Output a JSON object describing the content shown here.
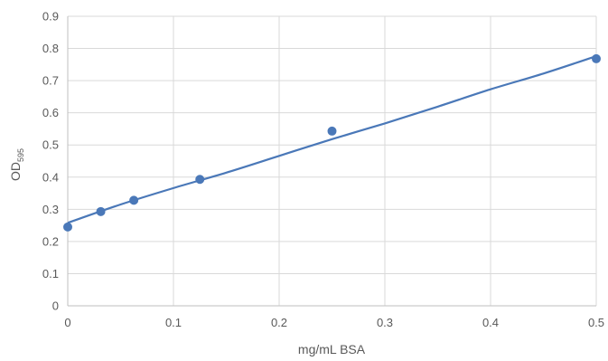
{
  "chart_data": {
    "type": "scatter",
    "title": "",
    "xlabel": "mg/mL BSA",
    "ylabel_main": "OD",
    "ylabel_sub": "595",
    "xlim": [
      0,
      0.5
    ],
    "ylim": [
      0,
      0.9
    ],
    "x_ticks": [
      "0",
      "0.1",
      "0.2",
      "0.3",
      "0.4",
      "0.5"
    ],
    "y_ticks": [
      "0",
      "0.1",
      "0.2",
      "0.3",
      "0.4",
      "0.5",
      "0.6",
      "0.7",
      "0.8",
      "0.9"
    ],
    "grid": true,
    "legend": "none",
    "series": [
      {
        "x": [
          0,
          0.03125,
          0.0625,
          0.125,
          0.25,
          0.5
        ],
        "y": [
          0.245,
          0.293,
          0.328,
          0.393,
          0.543,
          0.768
        ],
        "color": "#4a78b8"
      }
    ],
    "trendline": {
      "type": "polynomial",
      "x": [
        0,
        0.05,
        0.1,
        0.15,
        0.2,
        0.25,
        0.3,
        0.35,
        0.4,
        0.45,
        0.5
      ],
      "y": [
        0.258,
        0.315,
        0.366,
        0.414,
        0.466,
        0.518,
        0.567,
        0.619,
        0.673,
        0.722,
        0.776
      ],
      "color": "#4a78b8"
    },
    "colors": {
      "grid": "#d9d9d9",
      "axis": "#bfbfbf",
      "text": "#595959"
    }
  }
}
